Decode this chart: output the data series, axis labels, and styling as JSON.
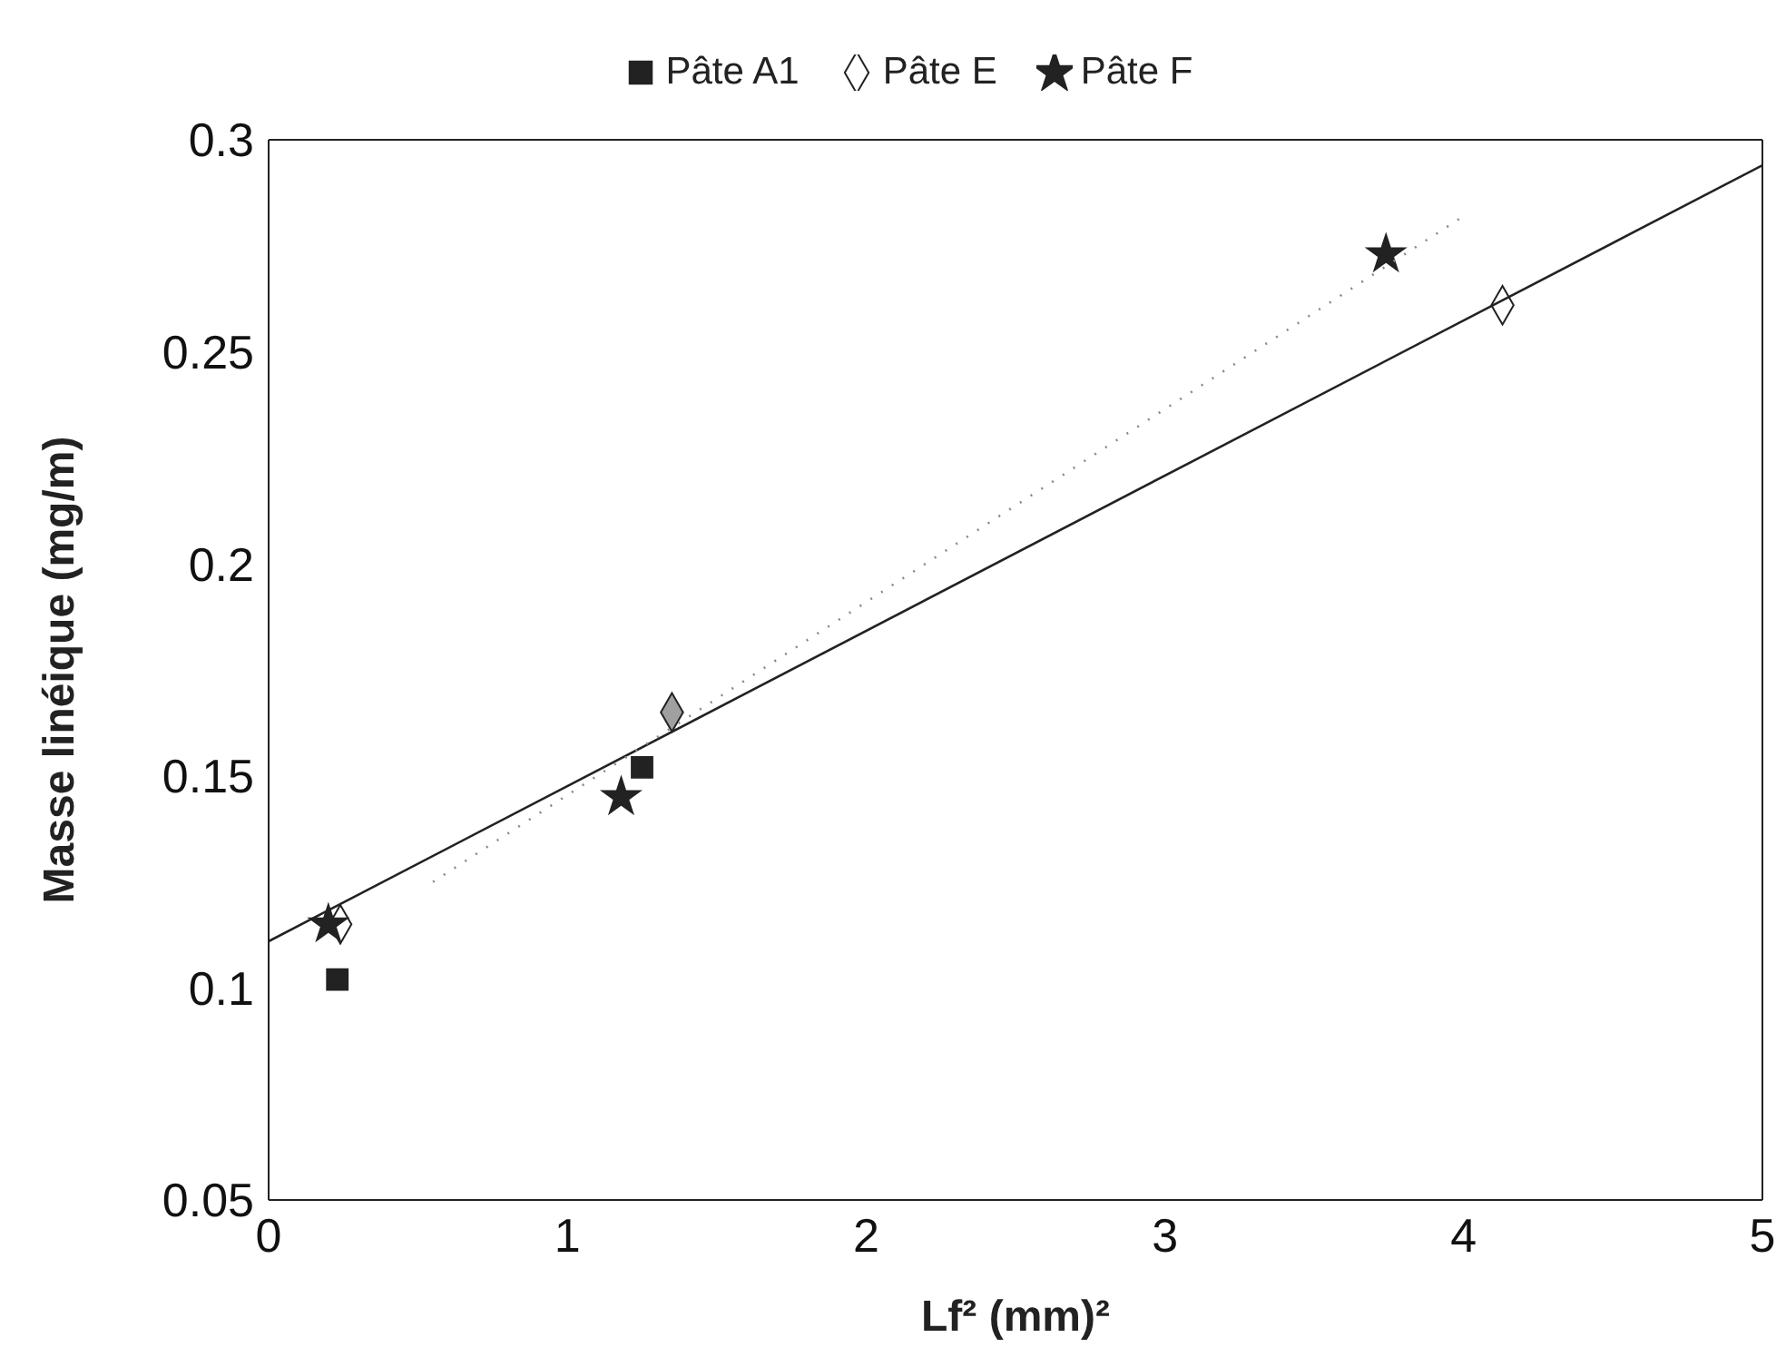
{
  "chart_data": {
    "type": "scatter",
    "xlabel": "Lf² (mm)²",
    "ylabel": "Masse linéique (mg/m)",
    "xlim": [
      0,
      5
    ],
    "ylim": [
      0.05,
      0.3
    ],
    "xticks": [
      0,
      1,
      2,
      3,
      4,
      5
    ],
    "yticks": [
      0.05,
      0.1,
      0.15,
      0.2,
      0.25,
      0.3
    ],
    "legend": "top",
    "series": [
      {
        "name": "Pâte A1",
        "marker": "square",
        "color": "#222222",
        "x": [
          0.23,
          1.25
        ],
        "values": [
          0.102,
          0.152
        ]
      },
      {
        "name": "Pâte E",
        "marker": "diamond",
        "color": "#222222",
        "colors": [
          "#ffffff",
          "#a0a0a0",
          "#ffffff"
        ],
        "x": [
          0.24,
          1.35,
          4.13
        ],
        "values": [
          0.115,
          0.165,
          0.261
        ]
      },
      {
        "name": "Pâte F",
        "marker": "star",
        "color": "#222222",
        "x": [
          0.2,
          1.18,
          3.74
        ],
        "values": [
          0.115,
          0.145,
          0.273
        ]
      },
      {
        "type": "line",
        "color": "#222222",
        "line_style": "solid",
        "x": [
          0,
          5
        ],
        "values": [
          0.111,
          0.294
        ]
      },
      {
        "type": "line",
        "color": "#888888",
        "line_style": "dotted",
        "x": [
          0.55,
          4.0
        ],
        "values": [
          0.125,
          0.282
        ]
      }
    ]
  }
}
